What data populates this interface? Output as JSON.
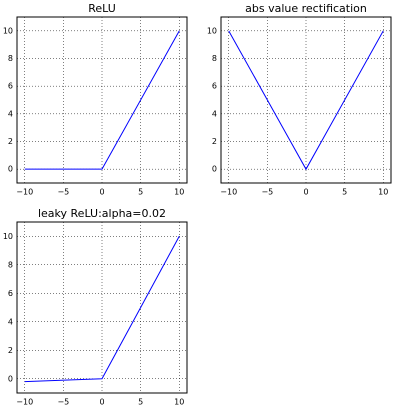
{
  "chart_data": [
    {
      "type": "line",
      "title": "ReLU",
      "x": [
        -10,
        0,
        10
      ],
      "series": [
        {
          "color": "#0000ff",
          "values": [
            0,
            0,
            10
          ]
        }
      ],
      "xlim": [
        -11,
        11
      ],
      "ylim": [
        -1,
        11
      ],
      "xticks": [
        {
          "value": -10,
          "label": "−10"
        },
        {
          "value": -5,
          "label": "−5"
        },
        0,
        5,
        10
      ],
      "yticks": [
        0,
        2,
        4,
        6,
        8,
        10
      ],
      "grid": true
    },
    {
      "type": "line",
      "title": "abs value rectification",
      "x": [
        -10,
        0,
        10
      ],
      "series": [
        {
          "color": "#0000ff",
          "values": [
            10,
            0,
            10
          ]
        }
      ],
      "xlim": [
        -11,
        11
      ],
      "ylim": [
        -1,
        11
      ],
      "xticks": [
        {
          "value": -10,
          "label": "−10"
        },
        {
          "value": -5,
          "label": "−5"
        },
        0,
        5,
        10
      ],
      "yticks": [
        0,
        2,
        4,
        6,
        8,
        10
      ],
      "grid": true
    },
    {
      "type": "line",
      "title": "leaky ReLU:alpha=0.02",
      "x": [
        -10,
        0,
        10
      ],
      "series": [
        {
          "color": "#0000ff",
          "values": [
            -0.2,
            0,
            10
          ]
        }
      ],
      "xlim": [
        -11,
        11
      ],
      "ylim": [
        -1,
        11
      ],
      "xticks": [
        {
          "value": -10,
          "label": "−10"
        },
        {
          "value": -5,
          "label": "−5"
        },
        0,
        5,
        10
      ],
      "yticks": [
        0,
        2,
        4,
        6,
        8,
        10
      ],
      "grid": true
    }
  ]
}
